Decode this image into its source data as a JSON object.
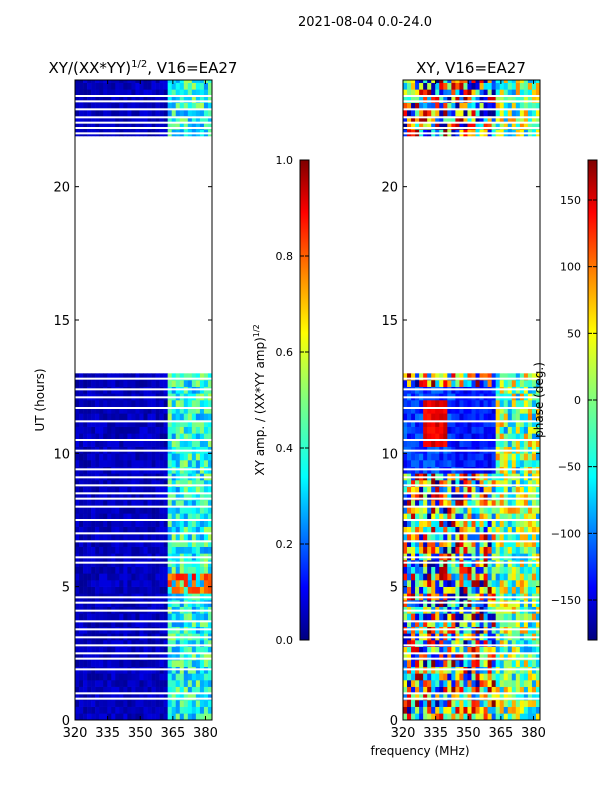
{
  "figure_title": "2021-08-04 0.0-24.0",
  "colors": {
    "background": "#ffffff",
    "axes": "#000000",
    "flag_gap": "#ffffff",
    "low_amp": "#00008f",
    "jet": [
      "#00007f",
      "#0000ff",
      "#007fff",
      "#00ffff",
      "#7fff7f",
      "#ffff00",
      "#ff7f00",
      "#ff0000",
      "#7f0000"
    ]
  },
  "chart_data": [
    {
      "type": "heatmap",
      "title_main": "XY/(XX*YY)",
      "title_exp": "1/2",
      "title_rest": ", V16=EA27",
      "xlabel": "",
      "ylabel": "UT (hours)",
      "xlim": [
        320,
        383
      ],
      "ylim": [
        0,
        24
      ],
      "xticks": [
        320,
        335,
        350,
        365,
        380
      ],
      "yticks": [
        0,
        5,
        10,
        15,
        20
      ],
      "data_ranges_hours": [
        [
          0.0,
          13.0
        ],
        [
          21.9,
          24.0
        ]
      ],
      "flagged_rows_hours": [
        0.8,
        1.0,
        1.9,
        2.3,
        2.5,
        2.8,
        3.1,
        3.4,
        3.7,
        4.1,
        4.4,
        4.6,
        5.9,
        6.1,
        6.7,
        7.0,
        7.5,
        8.0,
        8.3,
        8.5,
        8.8,
        9.1,
        9.4,
        10.1,
        10.5,
        11.2,
        11.7,
        12.1,
        12.4,
        12.8,
        22.0,
        22.2,
        22.4,
        22.6,
        22.9,
        23.2,
        23.4
      ],
      "colorbar": {
        "label_main": "XY amp. / (XX*YY amp)",
        "label_exp": "1/2",
        "min": 0.0,
        "max": 1.0,
        "ticks": [
          0.0,
          0.2,
          0.4,
          0.6,
          0.8,
          1.0
        ],
        "tick_labels": [
          "0.0",
          "0.2",
          "0.4",
          "0.6",
          "0.8",
          "1.0"
        ]
      }
    },
    {
      "type": "heatmap",
      "title_main": "XY, V16=EA27",
      "xlabel": "frequency (MHz)",
      "ylabel": "",
      "xlim": [
        320,
        383
      ],
      "ylim": [
        0,
        24
      ],
      "xticks": [
        320,
        335,
        350,
        365,
        380
      ],
      "yticks": [
        0,
        5,
        10,
        15,
        20
      ],
      "data_ranges_hours": [
        [
          0.0,
          13.0
        ],
        [
          21.9,
          24.0
        ]
      ],
      "flagged_rows_hours": [
        0.8,
        1.0,
        1.9,
        2.3,
        2.5,
        2.8,
        3.1,
        3.4,
        3.7,
        4.1,
        4.4,
        4.6,
        5.9,
        6.1,
        6.7,
        7.0,
        7.5,
        8.0,
        8.3,
        8.5,
        8.8,
        9.1,
        9.4,
        10.1,
        10.5,
        11.2,
        11.7,
        12.1,
        12.4,
        12.8,
        22.0,
        22.2,
        22.4,
        22.6,
        22.9,
        23.2,
        23.4
      ],
      "colorbar": {
        "label_main": "phase (deg.)",
        "min": -180,
        "max": 180,
        "ticks": [
          150,
          100,
          50,
          0,
          -50,
          -100,
          -150
        ],
        "tick_labels": [
          "150",
          "100",
          "50",
          "0",
          "−50",
          "−100",
          "−150"
        ]
      }
    }
  ]
}
